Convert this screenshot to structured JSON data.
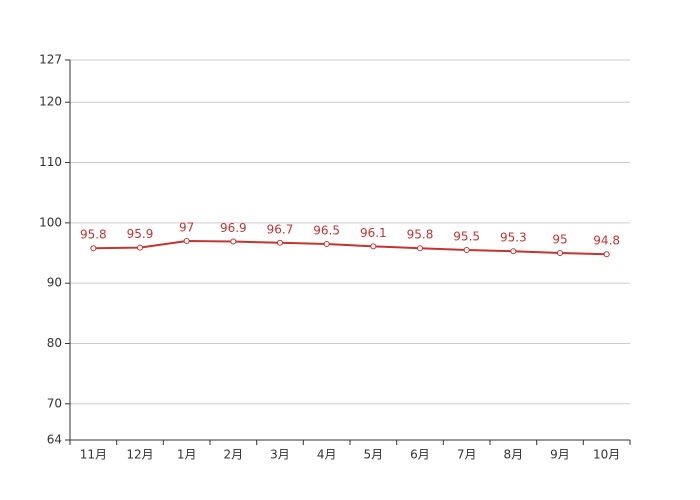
{
  "chart_data": {
    "type": "line",
    "categories": [
      "11月",
      "12月",
      "1月",
      "2月",
      "3月",
      "4月",
      "5月",
      "6月",
      "7月",
      "8月",
      "9月",
      "10月"
    ],
    "values": [
      95.8,
      95.9,
      97,
      96.9,
      96.7,
      96.5,
      96.1,
      95.8,
      95.5,
      95.3,
      95,
      94.8
    ],
    "color": "#c23531",
    "ylim": [
      64,
      127
    ],
    "yticks": [
      64,
      70,
      80,
      90,
      100,
      110,
      120,
      127
    ],
    "grid": true
  }
}
